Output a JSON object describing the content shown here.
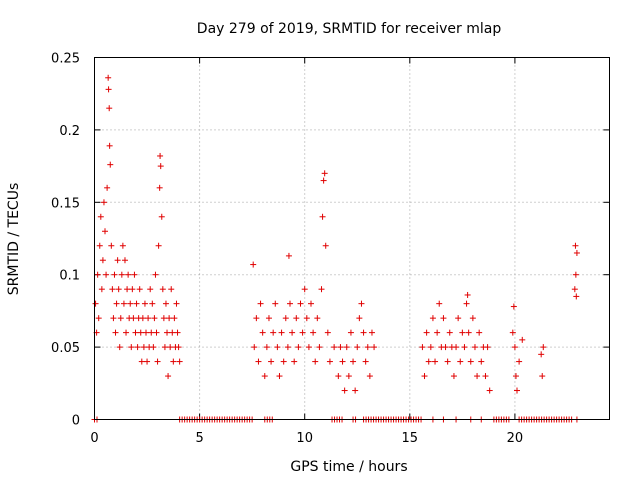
{
  "chart_data": {
    "type": "scatter",
    "title": "Day 279 of 2019, SRMTID for receiver mlap",
    "xlabel": "GPS time / hours",
    "ylabel": "SRMTID / TECUs",
    "xlim": [
      0,
      24.5
    ],
    "ylim": [
      0,
      0.25
    ],
    "xticks": [
      {
        "value": 0,
        "label": "0"
      },
      {
        "value": 5,
        "label": "5"
      },
      {
        "value": 10,
        "label": "10"
      },
      {
        "value": 15,
        "label": "15"
      },
      {
        "value": 20,
        "label": "20"
      }
    ],
    "yticks": [
      {
        "value": 0,
        "label": "0"
      },
      {
        "value": 0.05,
        "label": "0.05"
      },
      {
        "value": 0.1,
        "label": "0.1"
      },
      {
        "value": 0.15,
        "label": "0.15"
      },
      {
        "value": 0.2,
        "label": "0.2"
      },
      {
        "value": 0.25,
        "label": "0.25"
      }
    ],
    "grid": true,
    "marker": "+",
    "color": "#e00000",
    "series": [
      {
        "name": "SRMTID",
        "points": [
          [
            0.05,
            0.08
          ],
          [
            0.1,
            0.06
          ],
          [
            0.15,
            0.1
          ],
          [
            0.2,
            0.07
          ],
          [
            0.25,
            0.12
          ],
          [
            0.3,
            0.14
          ],
          [
            0.35,
            0.09
          ],
          [
            0.4,
            0.11
          ],
          [
            0.45,
            0.15
          ],
          [
            0.5,
            0.13
          ],
          [
            0.55,
            0.1
          ],
          [
            0.6,
            0.16
          ],
          [
            0.65,
            0.236
          ],
          [
            0.67,
            0.228
          ],
          [
            0.7,
            0.215
          ],
          [
            0.72,
            0.189
          ],
          [
            0.75,
            0.176
          ],
          [
            0.8,
            0.12
          ],
          [
            0.85,
            0.09
          ],
          [
            0.9,
            0.07
          ],
          [
            0.95,
            0.1
          ],
          [
            1.0,
            0.06
          ],
          [
            1.05,
            0.08
          ],
          [
            1.1,
            0.11
          ],
          [
            1.15,
            0.09
          ],
          [
            1.2,
            0.05
          ],
          [
            1.25,
            0.07
          ],
          [
            1.3,
            0.1
          ],
          [
            1.35,
            0.12
          ],
          [
            1.4,
            0.08
          ],
          [
            1.45,
            0.11
          ],
          [
            1.5,
            0.06
          ],
          [
            1.55,
            0.09
          ],
          [
            1.6,
            0.1
          ],
          [
            1.65,
            0.07
          ],
          [
            1.7,
            0.08
          ],
          [
            1.75,
            0.05
          ],
          [
            1.8,
            0.09
          ],
          [
            1.85,
            0.07
          ],
          [
            1.9,
            0.1
          ],
          [
            1.95,
            0.06
          ],
          [
            2.0,
            0.08
          ],
          [
            2.05,
            0.05
          ],
          [
            2.1,
            0.07
          ],
          [
            2.15,
            0.09
          ],
          [
            2.2,
            0.06
          ],
          [
            2.25,
            0.04
          ],
          [
            2.3,
            0.07
          ],
          [
            2.35,
            0.05
          ],
          [
            2.4,
            0.08
          ],
          [
            2.45,
            0.06
          ],
          [
            2.5,
            0.04
          ],
          [
            2.55,
            0.07
          ],
          [
            2.6,
            0.05
          ],
          [
            2.65,
            0.09
          ],
          [
            2.7,
            0.06
          ],
          [
            2.75,
            0.08
          ],
          [
            2.8,
            0.05
          ],
          [
            2.85,
            0.07
          ],
          [
            2.9,
            0.1
          ],
          [
            2.95,
            0.06
          ],
          [
            3.0,
            0.04
          ],
          [
            3.05,
            0.12
          ],
          [
            3.1,
            0.16
          ],
          [
            3.12,
            0.182
          ],
          [
            3.15,
            0.175
          ],
          [
            3.2,
            0.14
          ],
          [
            3.25,
            0.09
          ],
          [
            3.3,
            0.07
          ],
          [
            3.35,
            0.05
          ],
          [
            3.4,
            0.08
          ],
          [
            3.45,
            0.06
          ],
          [
            3.5,
            0.03
          ],
          [
            3.55,
            0.07
          ],
          [
            3.6,
            0.05
          ],
          [
            3.65,
            0.09
          ],
          [
            3.7,
            0.06
          ],
          [
            3.75,
            0.04
          ],
          [
            3.8,
            0.07
          ],
          [
            3.85,
            0.05
          ],
          [
            3.9,
            0.08
          ],
          [
            3.95,
            0.06
          ],
          [
            4.0,
            0.05
          ],
          [
            4.05,
            0.04
          ],
          [
            7.55,
            0.107
          ],
          [
            7.6,
            0.05
          ],
          [
            7.7,
            0.07
          ],
          [
            7.8,
            0.04
          ],
          [
            7.9,
            0.08
          ],
          [
            8.0,
            0.06
          ],
          [
            8.1,
            0.03
          ],
          [
            8.2,
            0.05
          ],
          [
            8.3,
            0.07
          ],
          [
            8.4,
            0.04
          ],
          [
            8.5,
            0.06
          ],
          [
            8.6,
            0.08
          ],
          [
            8.7,
            0.05
          ],
          [
            8.8,
            0.03
          ],
          [
            8.9,
            0.06
          ],
          [
            9.0,
            0.04
          ],
          [
            9.1,
            0.07
          ],
          [
            9.2,
            0.05
          ],
          [
            9.25,
            0.113
          ],
          [
            9.3,
            0.08
          ],
          [
            9.4,
            0.06
          ],
          [
            9.5,
            0.04
          ],
          [
            9.6,
            0.07
          ],
          [
            9.7,
            0.05
          ],
          [
            9.8,
            0.08
          ],
          [
            9.9,
            0.06
          ],
          [
            10.0,
            0.09
          ],
          [
            10.1,
            0.07
          ],
          [
            10.2,
            0.05
          ],
          [
            10.3,
            0.08
          ],
          [
            10.4,
            0.06
          ],
          [
            10.5,
            0.04
          ],
          [
            10.6,
            0.07
          ],
          [
            10.7,
            0.05
          ],
          [
            10.8,
            0.09
          ],
          [
            10.85,
            0.14
          ],
          [
            10.9,
            0.165
          ],
          [
            10.95,
            0.17
          ],
          [
            11.0,
            0.12
          ],
          [
            11.1,
            0.06
          ],
          [
            11.2,
            0.04
          ],
          [
            11.4,
            0.05
          ],
          [
            11.6,
            0.03
          ],
          [
            11.7,
            0.05
          ],
          [
            11.8,
            0.04
          ],
          [
            11.9,
            0.02
          ],
          [
            12.0,
            0.05
          ],
          [
            12.1,
            0.03
          ],
          [
            12.2,
            0.06
          ],
          [
            12.3,
            0.04
          ],
          [
            12.4,
            0.02
          ],
          [
            12.5,
            0.05
          ],
          [
            12.6,
            0.07
          ],
          [
            12.7,
            0.08
          ],
          [
            12.8,
            0.06
          ],
          [
            12.9,
            0.04
          ],
          [
            13.0,
            0.05
          ],
          [
            13.1,
            0.03
          ],
          [
            13.2,
            0.06
          ],
          [
            13.3,
            0.05
          ],
          [
            15.6,
            0.05
          ],
          [
            15.7,
            0.03
          ],
          [
            15.8,
            0.06
          ],
          [
            15.9,
            0.04
          ],
          [
            16.0,
            0.05
          ],
          [
            16.1,
            0.07
          ],
          [
            16.2,
            0.04
          ],
          [
            16.3,
            0.06
          ],
          [
            16.4,
            0.08
          ],
          [
            16.5,
            0.05
          ],
          [
            16.6,
            0.07
          ],
          [
            16.7,
            0.05
          ],
          [
            16.8,
            0.04
          ],
          [
            16.9,
            0.06
          ],
          [
            17.0,
            0.05
          ],
          [
            17.1,
            0.03
          ],
          [
            17.2,
            0.05
          ],
          [
            17.3,
            0.07
          ],
          [
            17.4,
            0.04
          ],
          [
            17.5,
            0.06
          ],
          [
            17.6,
            0.05
          ],
          [
            17.7,
            0.08
          ],
          [
            17.75,
            0.086
          ],
          [
            17.8,
            0.06
          ],
          [
            17.9,
            0.04
          ],
          [
            18.0,
            0.07
          ],
          [
            18.1,
            0.05
          ],
          [
            18.2,
            0.03
          ],
          [
            18.3,
            0.06
          ],
          [
            18.4,
            0.04
          ],
          [
            18.5,
            0.05
          ],
          [
            18.6,
            0.03
          ],
          [
            18.7,
            0.05
          ],
          [
            18.8,
            0.02
          ],
          [
            19.9,
            0.06
          ],
          [
            19.95,
            0.078
          ],
          [
            20.0,
            0.05
          ],
          [
            20.05,
            0.03
          ],
          [
            20.1,
            0.02
          ],
          [
            20.2,
            0.04
          ],
          [
            20.35,
            0.055
          ],
          [
            21.25,
            0.045
          ],
          [
            21.3,
            0.03
          ],
          [
            21.35,
            0.05
          ],
          [
            22.85,
            0.09
          ],
          [
            22.88,
            0.12
          ],
          [
            22.9,
            0.1
          ],
          [
            22.92,
            0.085
          ],
          [
            22.95,
            0.115
          ]
        ],
        "zero_ranges": [
          [
            0.0,
            0.15
          ],
          [
            4.05,
            7.55
          ],
          [
            8.1,
            8.5
          ],
          [
            11.3,
            11.8
          ],
          [
            12.3,
            12.5
          ],
          [
            12.8,
            15.6
          ],
          [
            16.1,
            16.2
          ],
          [
            16.6,
            16.7
          ],
          [
            17.2,
            17.3
          ],
          [
            17.9,
            18.0
          ],
          [
            18.4,
            18.5
          ],
          [
            19.0,
            19.8
          ],
          [
            20.2,
            22.7
          ],
          [
            22.95,
            23.0
          ]
        ]
      }
    ]
  }
}
